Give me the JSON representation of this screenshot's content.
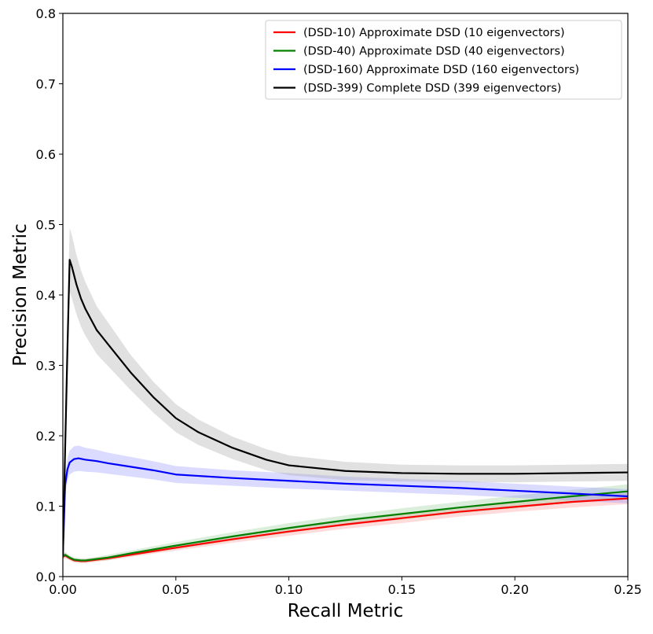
{
  "chart_data": {
    "type": "line",
    "title": "",
    "xlabel": "Recall Metric",
    "ylabel": "Precision Metric",
    "xlim": [
      0.0,
      0.25
    ],
    "ylim": [
      0.0,
      0.8
    ],
    "xticks": [
      0.0,
      0.05,
      0.1,
      0.15,
      0.2,
      0.25
    ],
    "xtick_labels": [
      "0.00",
      "0.05",
      "0.10",
      "0.15",
      "0.20",
      "0.25"
    ],
    "yticks": [
      0.0,
      0.1,
      0.2,
      0.3,
      0.4,
      0.5,
      0.6,
      0.7,
      0.8
    ],
    "ytick_labels": [
      "0.0",
      "0.1",
      "0.2",
      "0.3",
      "0.4",
      "0.5",
      "0.6",
      "0.7",
      "0.8"
    ],
    "grid": false,
    "legend_position": "top-right",
    "series": [
      {
        "name": "(DSD-10) Approximate DSD (10 eigenvectors)",
        "color": "#ff0000",
        "band_color": "#ff9999",
        "x": [
          0.0,
          0.001,
          0.003,
          0.005,
          0.008,
          0.01,
          0.015,
          0.02,
          0.03,
          0.05,
          0.075,
          0.1,
          0.125,
          0.15,
          0.175,
          0.2,
          0.225,
          0.25
        ],
        "y": [
          0.028,
          0.03,
          0.026,
          0.023,
          0.022,
          0.022,
          0.024,
          0.026,
          0.031,
          0.041,
          0.053,
          0.064,
          0.074,
          0.083,
          0.092,
          0.099,
          0.106,
          0.111
        ],
        "band": [
          0.004,
          0.004,
          0.003,
          0.003,
          0.003,
          0.003,
          0.003,
          0.003,
          0.003,
          0.004,
          0.005,
          0.006,
          0.006,
          0.007,
          0.007,
          0.007,
          0.008,
          0.008
        ]
      },
      {
        "name": "(DSD-40) Approximate DSD (40 eigenvectors)",
        "color": "#008000",
        "band_color": "#99cc99",
        "x": [
          0.0,
          0.001,
          0.003,
          0.005,
          0.008,
          0.01,
          0.015,
          0.02,
          0.03,
          0.05,
          0.075,
          0.1,
          0.125,
          0.15,
          0.175,
          0.2,
          0.225,
          0.25
        ],
        "y": [
          0.029,
          0.031,
          0.027,
          0.024,
          0.023,
          0.023,
          0.025,
          0.027,
          0.033,
          0.044,
          0.057,
          0.069,
          0.08,
          0.089,
          0.098,
          0.106,
          0.114,
          0.121
        ],
        "band": [
          0.004,
          0.004,
          0.003,
          0.003,
          0.003,
          0.003,
          0.003,
          0.004,
          0.004,
          0.005,
          0.006,
          0.007,
          0.007,
          0.008,
          0.008,
          0.009,
          0.009,
          0.01
        ]
      },
      {
        "name": "(DSD-160) Approximate DSD (160 eigenvectors)",
        "color": "#0000ff",
        "band_color": "#9999ff",
        "x": [
          0.0,
          0.001,
          0.002,
          0.003,
          0.005,
          0.007,
          0.01,
          0.015,
          0.02,
          0.03,
          0.04,
          0.05,
          0.075,
          0.1,
          0.125,
          0.15,
          0.175,
          0.2,
          0.225,
          0.25
        ],
        "y": [
          0.03,
          0.13,
          0.152,
          0.162,
          0.167,
          0.168,
          0.166,
          0.164,
          0.161,
          0.156,
          0.151,
          0.145,
          0.14,
          0.136,
          0.132,
          0.129,
          0.126,
          0.122,
          0.118,
          0.114
        ],
        "band": [
          0.005,
          0.014,
          0.016,
          0.017,
          0.018,
          0.018,
          0.017,
          0.016,
          0.015,
          0.014,
          0.013,
          0.012,
          0.011,
          0.011,
          0.01,
          0.01,
          0.01,
          0.01,
          0.01,
          0.01
        ]
      },
      {
        "name": "(DSD-399) Complete DSD (399 eigenvectors)",
        "color": "#000000",
        "band_color": "#aaaaaa",
        "x": [
          0.0,
          0.001,
          0.002,
          0.003,
          0.004,
          0.006,
          0.008,
          0.01,
          0.015,
          0.02,
          0.025,
          0.03,
          0.04,
          0.05,
          0.06,
          0.075,
          0.09,
          0.1,
          0.125,
          0.15,
          0.175,
          0.2,
          0.225,
          0.25
        ],
        "y": [
          0.03,
          0.18,
          0.32,
          0.45,
          0.44,
          0.415,
          0.395,
          0.38,
          0.35,
          0.33,
          0.31,
          0.29,
          0.255,
          0.225,
          0.205,
          0.183,
          0.166,
          0.158,
          0.15,
          0.147,
          0.146,
          0.146,
          0.147,
          0.148
        ],
        "band": [
          0.005,
          0.03,
          0.04,
          0.045,
          0.045,
          0.042,
          0.04,
          0.038,
          0.034,
          0.031,
          0.028,
          0.025,
          0.022,
          0.02,
          0.018,
          0.016,
          0.015,
          0.014,
          0.013,
          0.012,
          0.012,
          0.012,
          0.012,
          0.012
        ]
      }
    ]
  }
}
